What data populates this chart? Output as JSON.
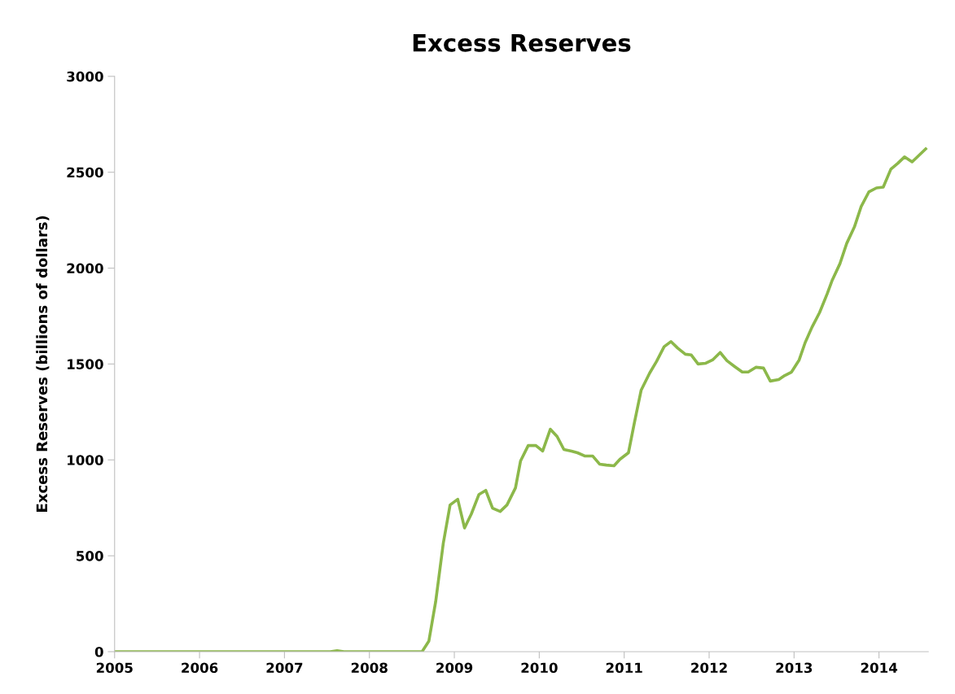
{
  "chart_data": {
    "type": "line",
    "title": "Excess Reserves",
    "ylabel": "Excess Reserves (billions of dollars)",
    "series": [
      {
        "color": "#8cb84a",
        "x": [
          2005.0,
          2007.54,
          2007.62,
          2007.7,
          2008.62,
          2008.7,
          2008.78,
          2008.87,
          2008.95,
          2009.04,
          2009.12,
          2009.2,
          2009.29,
          2009.37,
          2009.45,
          2009.54,
          2009.62,
          2009.72,
          2009.78,
          2009.87,
          2009.96,
          2010.04,
          2010.13,
          2010.21,
          2010.29,
          2010.38,
          2010.45,
          2010.54,
          2010.63,
          2010.71,
          2010.79,
          2010.88,
          2010.95,
          2011.05,
          2011.12,
          2011.2,
          2011.3,
          2011.38,
          2011.47,
          2011.55,
          2011.63,
          2011.72,
          2011.79,
          2011.87,
          2011.96,
          2012.04,
          2012.13,
          2012.21,
          2012.3,
          2012.39,
          2012.46,
          2012.55,
          2012.64,
          2012.72,
          2012.82,
          2012.89,
          2012.97,
          2013.06,
          2013.13,
          2013.21,
          2013.3,
          2013.39,
          2013.45,
          2013.54,
          2013.62,
          2013.71,
          2013.79,
          2013.88,
          2013.97,
          2014.05,
          2014.14,
          2014.22,
          2014.3,
          2014.39,
          2014.47,
          2014.55
        ],
        "values": [
          0,
          0,
          5,
          0,
          0,
          55,
          260,
          565,
          765,
          795,
          645,
          718,
          820,
          841,
          748,
          731,
          765,
          854,
          995,
          1075,
          1075,
          1046,
          1160,
          1122,
          1054,
          1046,
          1037,
          1020,
          1020,
          978,
          973,
          969,
          1003,
          1037,
          1194,
          1364,
          1453,
          1513,
          1590,
          1617,
          1583,
          1551,
          1547,
          1500,
          1504,
          1521,
          1560,
          1517,
          1487,
          1458,
          1458,
          1483,
          1479,
          1411,
          1419,
          1440,
          1458,
          1521,
          1611,
          1691,
          1768,
          1866,
          1938,
          2023,
          2129,
          2214,
          2321,
          2397,
          2418,
          2422,
          2516,
          2546,
          2580,
          2554,
          2588,
          2622
        ]
      }
    ],
    "xlim": [
      2005,
      2014.58
    ],
    "xticks": [
      2005,
      2006,
      2007,
      2008,
      2009,
      2010,
      2011,
      2012,
      2013,
      2014
    ],
    "ylim": [
      0,
      3000
    ],
    "yticks": [
      0,
      500,
      1000,
      1500,
      2000,
      2500,
      3000
    ],
    "grid": false,
    "legend": false,
    "marker": "none",
    "line_style": "solid"
  }
}
